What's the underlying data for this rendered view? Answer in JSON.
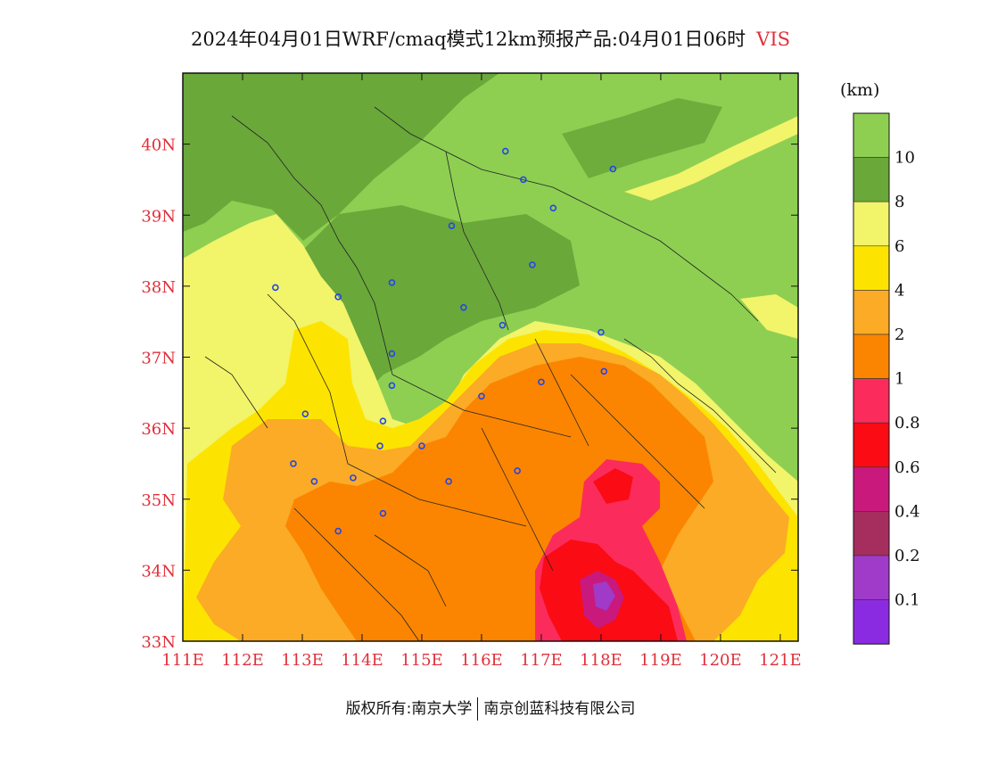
{
  "header": {
    "title": "2024年04月01日WRF/cmaq模式12km预报产品:04月01日06时",
    "variable": "VIS"
  },
  "axes": {
    "lat_labels": [
      "40N",
      "39N",
      "38N",
      "37N",
      "36N",
      "35N",
      "34N",
      "33N"
    ],
    "lat_values": [
      40,
      39,
      38,
      37,
      36,
      35,
      34,
      33
    ],
    "lon_labels": [
      "111E",
      "112E",
      "113E",
      "114E",
      "115E",
      "116E",
      "117E",
      "118E",
      "119E",
      "120E",
      "121E"
    ],
    "lon_values": [
      111,
      112,
      113,
      114,
      115,
      116,
      117,
      118,
      119,
      120,
      121
    ],
    "lon_range": [
      111,
      121.3
    ],
    "lat_range": [
      33,
      41
    ]
  },
  "legend": {
    "unit": "(km)",
    "labels": [
      "10",
      "8",
      "6",
      "4",
      "2",
      "1",
      "0.8",
      "0.6",
      "0.4",
      "0.2",
      "0.1"
    ],
    "colors": [
      "#8ecf52",
      "#6aa83a",
      "#f2f46a",
      "#fde400",
      "#fbab26",
      "#fb8500",
      "#fb2c5c",
      "#fb0b14",
      "#c9197c",
      "#a52e5e",
      "#a03ac8",
      "#8a2be2"
    ]
  },
  "cities": [
    {
      "lon": 116.4,
      "lat": 39.9
    },
    {
      "lon": 116.7,
      "lat": 39.5
    },
    {
      "lon": 118.2,
      "lat": 39.65
    },
    {
      "lon": 117.2,
      "lat": 39.1
    },
    {
      "lon": 115.5,
      "lat": 38.85
    },
    {
      "lon": 116.85,
      "lat": 38.3
    },
    {
      "lon": 112.55,
      "lat": 37.98
    },
    {
      "lon": 113.6,
      "lat": 37.85
    },
    {
      "lon": 114.5,
      "lat": 38.05
    },
    {
      "lon": 115.7,
      "lat": 37.7
    },
    {
      "lon": 116.35,
      "lat": 37.45
    },
    {
      "lon": 118.0,
      "lat": 37.35
    },
    {
      "lon": 114.5,
      "lat": 37.05
    },
    {
      "lon": 114.5,
      "lat": 36.6
    },
    {
      "lon": 116.0,
      "lat": 36.45
    },
    {
      "lon": 117.0,
      "lat": 36.65
    },
    {
      "lon": 118.05,
      "lat": 36.8
    },
    {
      "lon": 113.05,
      "lat": 36.2
    },
    {
      "lon": 114.35,
      "lat": 36.1
    },
    {
      "lon": 114.3,
      "lat": 35.75
    },
    {
      "lon": 115.0,
      "lat": 35.75
    },
    {
      "lon": 112.85,
      "lat": 35.5
    },
    {
      "lon": 113.85,
      "lat": 35.3
    },
    {
      "lon": 113.2,
      "lat": 35.25
    },
    {
      "lon": 115.45,
      "lat": 35.25
    },
    {
      "lon": 116.6,
      "lat": 35.4
    },
    {
      "lon": 114.35,
      "lat": 34.8
    },
    {
      "lon": 113.6,
      "lat": 34.55
    }
  ],
  "footer": {
    "left": "版权所有:南京大学",
    "right": "南京创蓝科技有限公司"
  }
}
